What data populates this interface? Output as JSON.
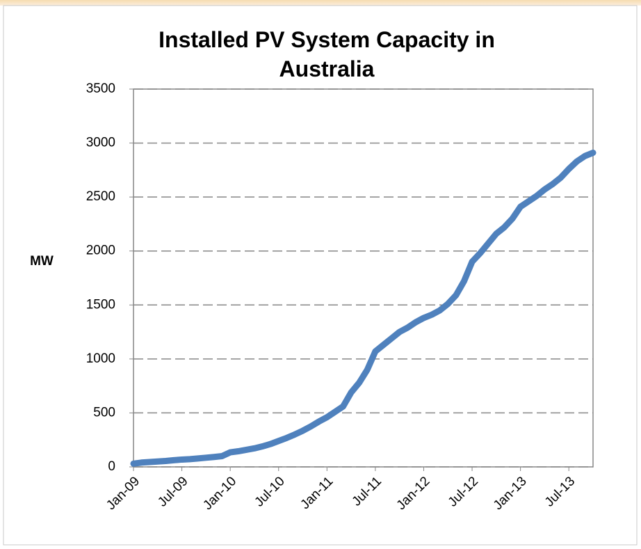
{
  "chart_data": {
    "type": "line",
    "title": "Installed PV System Capacity in Australia",
    "y_label": "MW",
    "categories": [
      "Jan-09",
      null,
      null,
      null,
      null,
      null,
      "Jul-09",
      null,
      null,
      null,
      null,
      null,
      "Jan-10",
      null,
      null,
      null,
      null,
      null,
      "Jul-10",
      null,
      null,
      null,
      null,
      null,
      "Jan-11",
      null,
      null,
      null,
      null,
      null,
      "Jul-11",
      null,
      null,
      null,
      null,
      null,
      "Jan-12",
      null,
      null,
      null,
      null,
      null,
      "Jul-12",
      null,
      null,
      null,
      null,
      null,
      "Jan-13",
      null,
      null,
      null,
      null,
      null,
      "Jul-13",
      null,
      null,
      null
    ],
    "series": [
      {
        "name": "Installed PV System Capacity",
        "color": "#4f81bd",
        "values": [
          30,
          40,
          45,
          50,
          55,
          62,
          68,
          72,
          78,
          85,
          92,
          100,
          135,
          145,
          158,
          172,
          190,
          212,
          240,
          268,
          300,
          335,
          375,
          420,
          460,
          510,
          560,
          690,
          780,
          900,
          1070,
          1130,
          1190,
          1250,
          1290,
          1340,
          1380,
          1410,
          1450,
          1510,
          1590,
          1720,
          1900,
          1980,
          2070,
          2160,
          2220,
          2300,
          2410,
          2460,
          2510,
          2570,
          2620,
          2680,
          2760,
          2830,
          2880,
          2910
        ]
      }
    ],
    "ylim": [
      0,
      3500
    ],
    "yticks": [
      0,
      500,
      1000,
      1500,
      2000,
      2500,
      3000,
      3500
    ],
    "grid": true
  }
}
